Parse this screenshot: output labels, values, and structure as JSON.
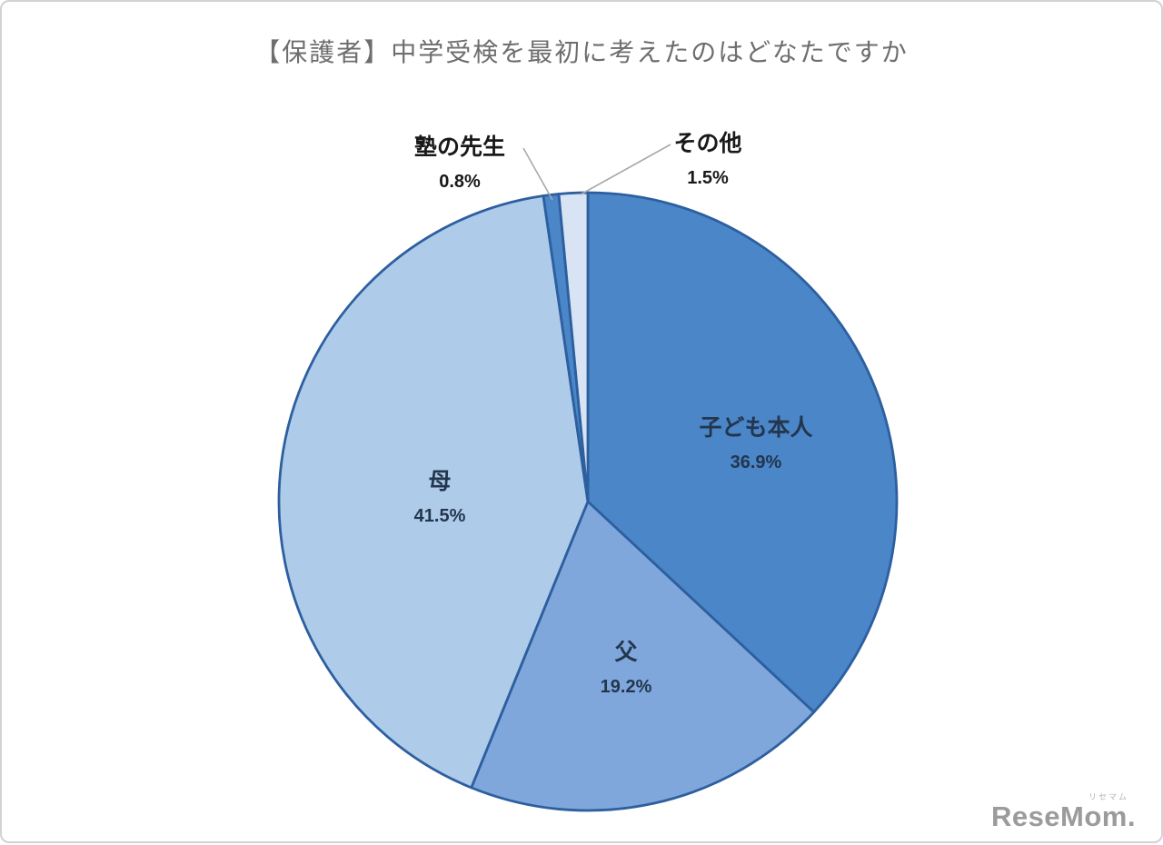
{
  "chart_data": {
    "type": "pie",
    "title": "【保護者】中学受検を最初に考えたのはどなたですか",
    "unit": "%",
    "start_angle_deg": -90,
    "direction": "clockwise",
    "stroke_color": "#2d5f9f",
    "legend_position": "none",
    "slices": [
      {
        "label": "子ども本人",
        "value": 36.9,
        "pct_label": "36.9%",
        "color": "#4a86c8",
        "label_placement": "inside"
      },
      {
        "label": "父",
        "value": 19.2,
        "pct_label": "19.2%",
        "color": "#7fa7db",
        "label_placement": "inside"
      },
      {
        "label": "母",
        "value": 41.5,
        "pct_label": "41.5%",
        "color": "#aecbe9",
        "label_placement": "inside"
      },
      {
        "label": "塾の先生",
        "value": 0.8,
        "pct_label": "0.8%",
        "color": "#4a86c8",
        "label_placement": "outside"
      },
      {
        "label": "その他",
        "value": 1.5,
        "pct_label": "1.5%",
        "color": "#d8e4f4",
        "label_placement": "outside"
      }
    ]
  },
  "footer": {
    "logo_text": "ReseMom",
    "logo_suffix": ".",
    "logo_ruby": "リセマム"
  }
}
